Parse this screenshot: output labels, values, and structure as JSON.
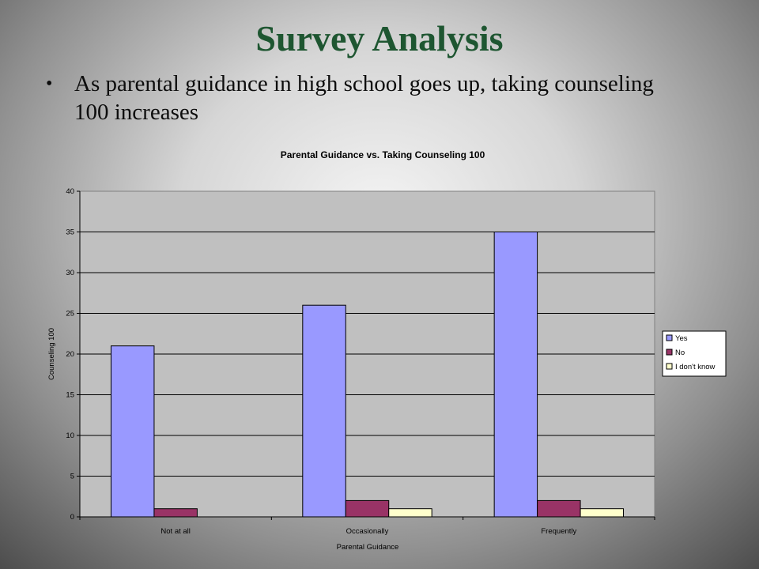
{
  "slide": {
    "title": "Survey Analysis",
    "bullet": "As parental guidance in high school goes up, taking counseling 100 increases"
  },
  "chart_data": {
    "type": "bar",
    "title": "Parental Guidance vs. Taking Counseling 100",
    "xlabel": "Parental Guidance",
    "ylabel": "Counseling 100",
    "categories": [
      "Not at all",
      "Occasionally",
      "Frequently"
    ],
    "series": [
      {
        "name": "Yes",
        "values": [
          21,
          26,
          35
        ],
        "color": "#9999ff"
      },
      {
        "name": "No",
        "values": [
          1,
          2,
          2
        ],
        "color": "#993366"
      },
      {
        "name": "I don't know",
        "values": [
          0,
          1,
          1
        ],
        "color": "#ffffcc"
      }
    ],
    "ylim": [
      0,
      40
    ],
    "yticks": [
      0,
      5,
      10,
      15,
      20,
      25,
      30,
      35,
      40
    ],
    "grid": true,
    "legend": "right",
    "plot_background": "#c0c0c0"
  }
}
